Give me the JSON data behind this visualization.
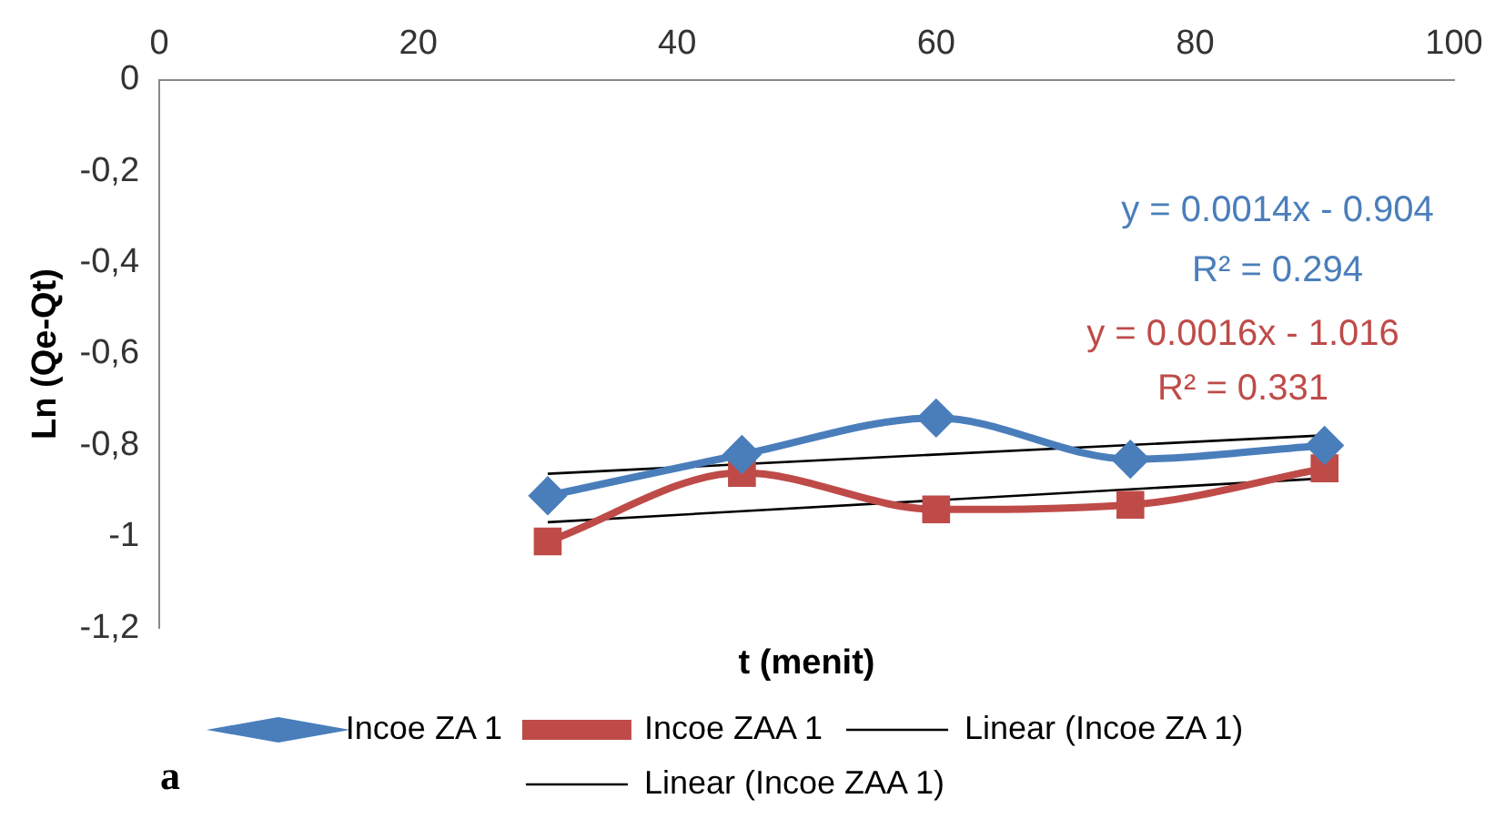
{
  "chart_data": {
    "type": "line",
    "xlabel": "t (menit)",
    "ylabel": "Ln (Qe-Qt)",
    "xlim": [
      0,
      100
    ],
    "xticks": [
      0,
      20,
      40,
      60,
      80,
      100
    ],
    "ylim": [
      -1.2,
      0
    ],
    "yticks": [
      {
        "value": 0,
        "label": "0"
      },
      {
        "value": -0.2,
        "label": "-0,2"
      },
      {
        "value": -0.4,
        "label": "-0,4"
      },
      {
        "value": -0.6,
        "label": "-0,6"
      },
      {
        "value": -0.8,
        "label": "-0,8"
      },
      {
        "value": -1,
        "label": "-1"
      },
      {
        "value": -1.2,
        "label": "-1,2"
      }
    ],
    "grid": false,
    "legend": "bottom",
    "series": [
      {
        "name": "Incoe ZA 1",
        "color": "#4a7ebb",
        "marker": "diamond",
        "x": [
          30,
          45,
          60,
          75,
          90
        ],
        "values": [
          -0.91,
          -0.82,
          -0.74,
          -0.83,
          -0.8
        ]
      },
      {
        "name": "Incoe ZAA 1",
        "color": "#be4b48",
        "marker": "square",
        "x": [
          30,
          45,
          60,
          75,
          90
        ],
        "values": [
          -1.01,
          -0.86,
          -0.94,
          -0.93,
          -0.85
        ]
      },
      {
        "name": "Linear (Incoe ZA 1)",
        "color": "#000000",
        "marker": "none",
        "x": [
          30,
          90
        ],
        "values": [
          -0.862,
          -0.778
        ]
      },
      {
        "name": "Linear (Incoe ZAA 1)",
        "color": "#000000",
        "marker": "none",
        "x": [
          30,
          90
        ],
        "values": [
          -0.968,
          -0.872
        ]
      }
    ],
    "annotations": [
      "y = 0.0014x - 0.904",
      "R² = 0.294",
      "y = 0.0016x - 1.016",
      "R² = 0.331",
      "a"
    ]
  }
}
